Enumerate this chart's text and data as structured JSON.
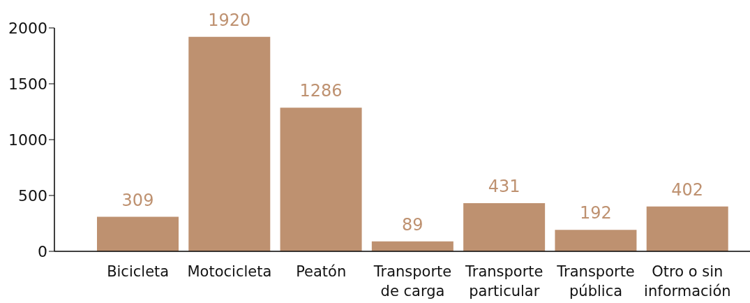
{
  "chart_data": {
    "type": "bar",
    "categories": [
      "Bicicleta",
      "Motocicleta",
      "Peatón",
      "Transporte de carga",
      "Transporte particular",
      "Transporte pública",
      "Otro o sin información"
    ],
    "values": [
      309,
      1920,
      1286,
      89,
      431,
      192,
      402
    ],
    "color": "#be9170",
    "ylim": [
      0,
      2000
    ],
    "yticks": [
      0,
      500,
      1000,
      1500,
      2000
    ],
    "data_labels": true
  }
}
